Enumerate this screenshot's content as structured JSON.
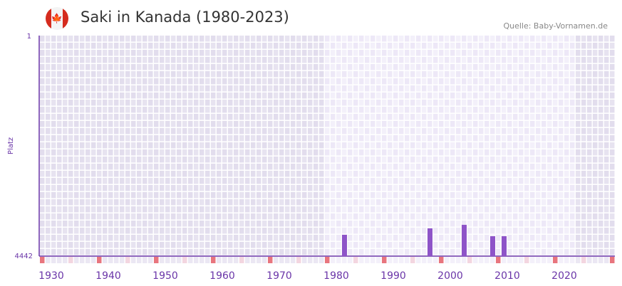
{
  "header": {
    "title": "Saki in Kanada (1980-2023)",
    "source": "Quelle: Baby-Vornamen.de",
    "flag_icon": "canada-flag-icon"
  },
  "chart_data": {
    "type": "bar",
    "title": "Saki in Kanada (1980-2023)",
    "xlabel": "",
    "ylabel": "Platz",
    "xlim": [
      1928,
      2028
    ],
    "ylim": [
      4442,
      1
    ],
    "y_ticks": [
      "1",
      "4442"
    ],
    "x_ticks": [
      1930,
      1940,
      1950,
      1960,
      1970,
      1980,
      1990,
      2000,
      2010,
      2020
    ],
    "highlight_range": [
      1978,
      2021
    ],
    "bars": [
      {
        "year": 1981,
        "rank": 4012
      },
      {
        "year": 1996,
        "rank": 3883
      },
      {
        "year": 2002,
        "rank": 3812
      },
      {
        "year": 2007,
        "rank": 4041
      },
      {
        "year": 2009,
        "rank": 4041
      }
    ],
    "colors": {
      "bar": "#8e54c8",
      "axis": "#6a35a8",
      "decade_marker": "#e8757e",
      "half_decade_marker": "#f3d6e0"
    }
  }
}
